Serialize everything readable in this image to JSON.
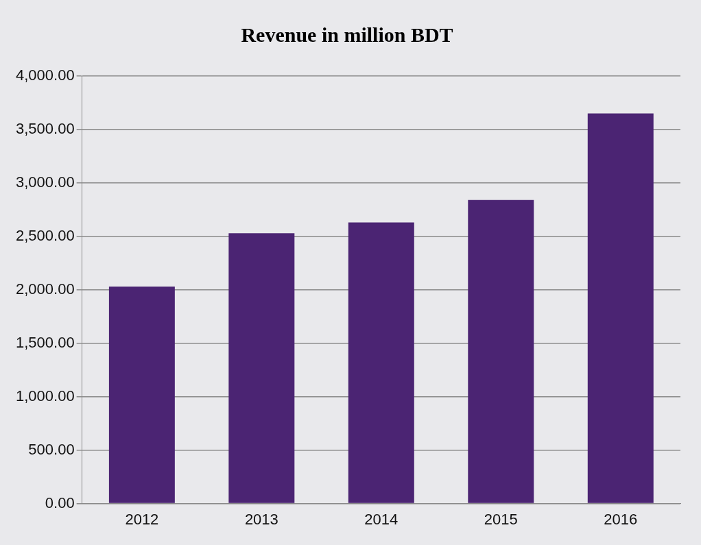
{
  "chart_data": {
    "type": "bar",
    "title": "Revenue in million BDT",
    "categories": [
      "2012",
      "2013",
      "2014",
      "2015",
      "2016"
    ],
    "values": [
      2030,
      2530,
      2630,
      2840,
      3650
    ],
    "color": "#4b2473",
    "ylim": [
      0,
      4000
    ],
    "yticks": [
      {
        "value": 0,
        "label": "0.00"
      },
      {
        "value": 500,
        "label": "500.00"
      },
      {
        "value": 1000,
        "label": "1,000.00"
      },
      {
        "value": 1500,
        "label": "1,500.00"
      },
      {
        "value": 2000,
        "label": "2,000.00"
      },
      {
        "value": 2500,
        "label": "2,500.00"
      },
      {
        "value": 3000,
        "label": "3,000.00"
      },
      {
        "value": 3500,
        "label": "3,500.00"
      },
      {
        "value": 4000,
        "label": "4,000.00"
      }
    ],
    "grid": "y",
    "legend": false
  }
}
